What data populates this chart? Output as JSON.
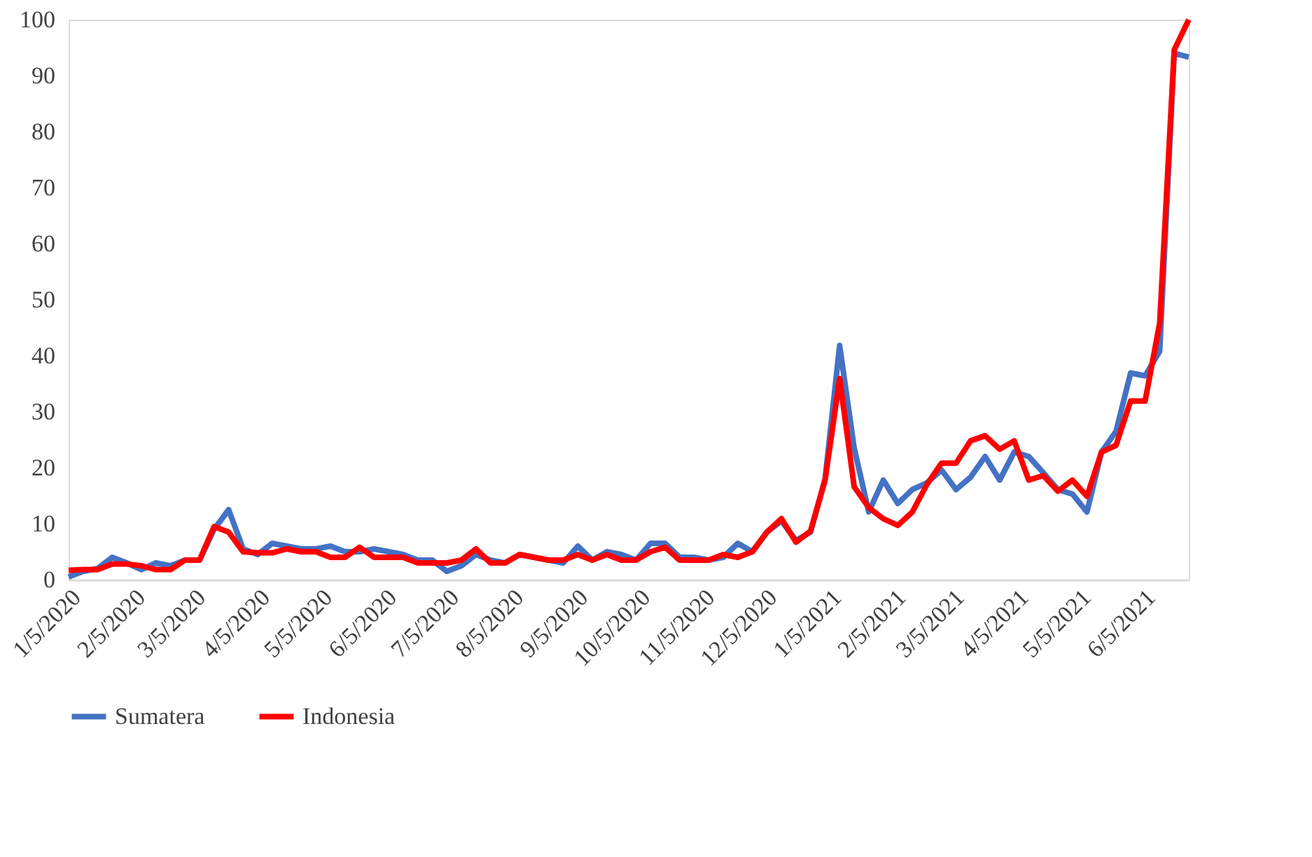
{
  "chart_data": {
    "type": "line",
    "x": [
      "2020-01-05",
      "2020-01-12",
      "2020-01-19",
      "2020-01-26",
      "2020-02-02",
      "2020-02-09",
      "2020-02-16",
      "2020-02-23",
      "2020-03-01",
      "2020-03-08",
      "2020-03-15",
      "2020-03-22",
      "2020-03-29",
      "2020-04-05",
      "2020-04-12",
      "2020-04-19",
      "2020-04-26",
      "2020-05-03",
      "2020-05-10",
      "2020-05-17",
      "2020-05-24",
      "2020-05-31",
      "2020-06-07",
      "2020-06-14",
      "2020-06-21",
      "2020-06-28",
      "2020-07-05",
      "2020-07-12",
      "2020-07-19",
      "2020-07-26",
      "2020-08-02",
      "2020-08-09",
      "2020-08-16",
      "2020-08-23",
      "2020-08-30",
      "2020-09-06",
      "2020-09-13",
      "2020-09-20",
      "2020-09-27",
      "2020-10-04",
      "2020-10-11",
      "2020-10-18",
      "2020-10-25",
      "2020-11-01",
      "2020-11-08",
      "2020-11-15",
      "2020-11-22",
      "2020-11-29",
      "2020-12-06",
      "2020-12-13",
      "2020-12-20",
      "2020-12-27",
      "2021-01-03",
      "2021-01-10",
      "2021-01-17",
      "2021-01-24",
      "2021-01-31",
      "2021-02-07",
      "2021-02-14",
      "2021-02-21",
      "2021-02-28",
      "2021-03-07",
      "2021-03-14",
      "2021-03-21",
      "2021-03-28",
      "2021-04-04",
      "2021-04-11",
      "2021-04-18",
      "2021-04-25",
      "2021-05-02",
      "2021-05-09",
      "2021-05-16",
      "2021-05-23",
      "2021-05-30",
      "2021-06-06",
      "2021-06-13",
      "2021-06-20",
      "2021-06-27"
    ],
    "series": [
      {
        "name": "Sumatera",
        "color": "#4472c4",
        "values": [
          0.5,
          1.5,
          2,
          4,
          3,
          1.8,
          3,
          2.5,
          3.5,
          3.5,
          9,
          12.5,
          5.5,
          4.5,
          6.5,
          6,
          5.5,
          5.5,
          6,
          5,
          5,
          5.5,
          5,
          4.5,
          3.5,
          3.5,
          1.5,
          2.5,
          4.5,
          3.5,
          3,
          4.5,
          4,
          3.5,
          3,
          6,
          3.5,
          5,
          4.5,
          3.5,
          6.5,
          6.5,
          4,
          4,
          3.5,
          4,
          6.5,
          5,
          8.5,
          10.5,
          7,
          8.5,
          18,
          41.8,
          23.5,
          12.1,
          17.8,
          13.6,
          16.1,
          17.3,
          19.6,
          16.1,
          18.3,
          22,
          17.8,
          22.8,
          22,
          19.1,
          16.1,
          15.3,
          12.1,
          22.8,
          26.5,
          36.9,
          36.4,
          40.8,
          94,
          93.3
        ]
      },
      {
        "name": "Indonesia",
        "color": "#ff0000",
        "values": [
          1.7,
          1.8,
          1.8,
          2.8,
          2.8,
          2.5,
          1.8,
          1.8,
          3.5,
          3.5,
          9.5,
          8.5,
          5,
          4.8,
          4.8,
          5.5,
          5,
          5,
          4,
          4,
          5.8,
          4,
          4,
          4,
          3,
          3,
          3,
          3.5,
          5.5,
          3,
          3,
          4.5,
          4,
          3.5,
          3.5,
          4.5,
          3.5,
          4.5,
          3.5,
          3.5,
          5,
          5.8,
          3.5,
          3.5,
          3.5,
          4.5,
          4,
          5,
          8.5,
          10.9,
          6.7,
          8.7,
          17.8,
          35.9,
          16.6,
          12.9,
          10.9,
          9.7,
          12.1,
          17,
          20.8,
          20.8,
          24.8,
          25.7,
          23.3,
          24.8,
          17.8,
          18.6,
          15.8,
          17.8,
          14.9,
          22.8,
          24,
          31.9,
          31.9,
          45.8,
          94.6,
          100
        ]
      }
    ],
    "xlim": [
      "2020-01-05",
      "2021-06-27"
    ],
    "xticks": [
      {
        "value": "2020-01-05",
        "label": "1/5/2020"
      },
      {
        "value": "2020-02-05",
        "label": "2/5/2020"
      },
      {
        "value": "2020-03-05",
        "label": "3/5/2020"
      },
      {
        "value": "2020-04-05",
        "label": "4/5/2020"
      },
      {
        "value": "2020-05-05",
        "label": "5/5/2020"
      },
      {
        "value": "2020-06-05",
        "label": "6/5/2020"
      },
      {
        "value": "2020-07-05",
        "label": "7/5/2020"
      },
      {
        "value": "2020-08-05",
        "label": "8/5/2020"
      },
      {
        "value": "2020-09-05",
        "label": "9/5/2020"
      },
      {
        "value": "2020-10-05",
        "label": "10/5/2020"
      },
      {
        "value": "2020-11-05",
        "label": "11/5/2020"
      },
      {
        "value": "2020-12-05",
        "label": "12/5/2020"
      },
      {
        "value": "2021-01-05",
        "label": "1/5/2021"
      },
      {
        "value": "2021-02-05",
        "label": "2/5/2021"
      },
      {
        "value": "2021-03-05",
        "label": "3/5/2021"
      },
      {
        "value": "2021-04-05",
        "label": "4/5/2021"
      },
      {
        "value": "2021-05-05",
        "label": "5/5/2021"
      },
      {
        "value": "2021-06-05",
        "label": "6/5/2021"
      }
    ],
    "ylim": [
      0,
      100
    ],
    "yticks": [
      0,
      10,
      20,
      30,
      40,
      50,
      60,
      70,
      80,
      90,
      100
    ],
    "grid": false,
    "legend": "bottom",
    "marker": "none",
    "line_style": "solid"
  }
}
